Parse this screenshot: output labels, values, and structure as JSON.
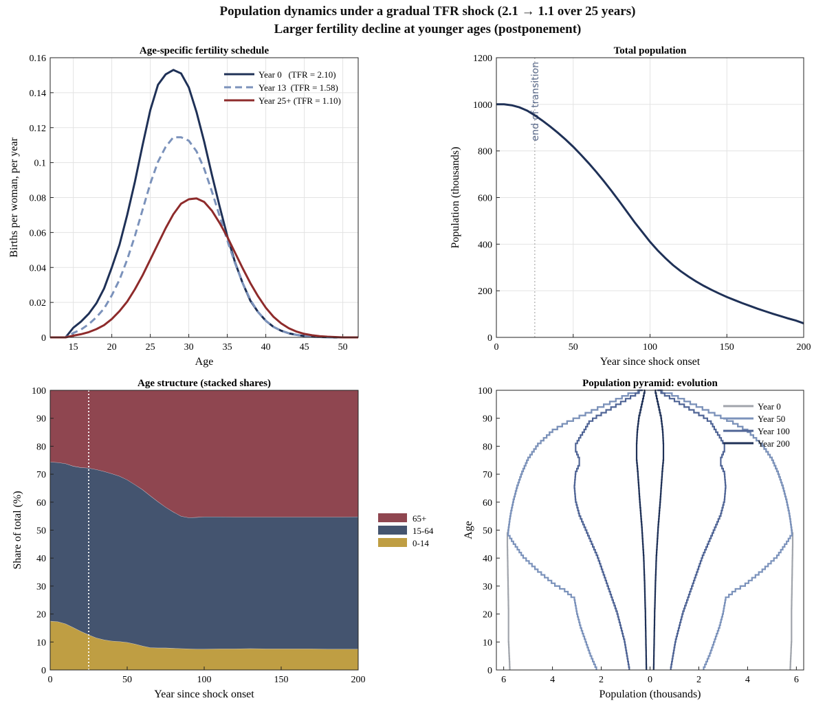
{
  "suptitle": {
    "line1": "Population dynamics under a gradual TFR shock (2.1  →  1.1 over 25 years)",
    "line2": "Larger fertility decline at younger ages (postponement)"
  },
  "colors": {
    "navy": "#1f3157",
    "light_blue": "#7b92bb",
    "dark_red": "#8e2b2b",
    "share_65": "#8f4650",
    "share_1564": "#44546f",
    "share_014": "#bf9e43",
    "gray": "#a0a4ab",
    "mid_blue": "#4f6495"
  },
  "chart_data": [
    {
      "type": "line",
      "title": "Age-specific fertility schedule",
      "xlabel": "Age",
      "ylabel": "Births per woman, per year",
      "xlim": [
        12,
        52
      ],
      "ylim": [
        0,
        0.16
      ],
      "xticks": [
        "15",
        "20",
        "25",
        "30",
        "35",
        "40",
        "45",
        "50"
      ],
      "yticks": [
        "0",
        "0.02",
        "0.04",
        "0.06",
        "0.08",
        "0.1",
        "0.12",
        "0.14",
        "0.16"
      ],
      "grid": true,
      "legend": "top-right",
      "series": [
        {
          "name": "Year 0   (TFR = 2.10)",
          "style": "solid",
          "color": "navy",
          "x": [
            12,
            14,
            15,
            16,
            17,
            18,
            19,
            20,
            21,
            22,
            23,
            24,
            25,
            26,
            27,
            28,
            29,
            30,
            31,
            32,
            33,
            34,
            35,
            36,
            37,
            38,
            39,
            40,
            41,
            42,
            43,
            44,
            45,
            46,
            47,
            48,
            49,
            50,
            52
          ],
          "y": [
            0,
            0,
            0.0055,
            0.009,
            0.0135,
            0.0195,
            0.028,
            0.04,
            0.053,
            0.07,
            0.089,
            0.11,
            0.13,
            0.1445,
            0.1505,
            0.153,
            0.151,
            0.143,
            0.129,
            0.112,
            0.093,
            0.075,
            0.058,
            0.043,
            0.031,
            0.021,
            0.0145,
            0.0095,
            0.006,
            0.0038,
            0.0023,
            0.0014,
            0.0008,
            0.0004,
            0.0002,
            0.0001,
            0,
            0,
            0
          ]
        },
        {
          "name": "Year 13  (TFR = 1.58)",
          "style": "dashed",
          "color": "light_blue",
          "x": [
            12,
            14,
            15,
            16,
            17,
            18,
            19,
            20,
            21,
            22,
            23,
            24,
            25,
            26,
            27,
            28,
            29,
            30,
            31,
            32,
            33,
            34,
            35,
            36,
            37,
            38,
            39,
            40,
            41,
            42,
            43,
            44,
            45,
            46,
            47,
            48,
            49,
            50,
            52
          ],
          "y": [
            0,
            0,
            0.0025,
            0.0045,
            0.0075,
            0.0115,
            0.0165,
            0.024,
            0.033,
            0.0445,
            0.058,
            0.073,
            0.088,
            0.1005,
            0.109,
            0.1145,
            0.1145,
            0.1125,
            0.1065,
            0.0965,
            0.0835,
            0.0695,
            0.0555,
            0.0425,
            0.031,
            0.0215,
            0.0145,
            0.0095,
            0.006,
            0.0038,
            0.0023,
            0.0014,
            0.0008,
            0.0004,
            0.0002,
            0.0001,
            0,
            0,
            0
          ]
        },
        {
          "name": "Year 25+ (TFR = 1.10)",
          "style": "solid",
          "color": "dark_red",
          "x": [
            12,
            14,
            15,
            16,
            17,
            18,
            19,
            20,
            21,
            22,
            23,
            24,
            25,
            26,
            27,
            28,
            29,
            30,
            31,
            32,
            33,
            34,
            35,
            36,
            37,
            38,
            39,
            40,
            41,
            42,
            43,
            44,
            45,
            46,
            47,
            48,
            49,
            50,
            52
          ],
          "y": [
            0,
            0,
            0.001,
            0.0018,
            0.003,
            0.0047,
            0.007,
            0.0105,
            0.015,
            0.0205,
            0.0275,
            0.0355,
            0.0445,
            0.0535,
            0.0625,
            0.0705,
            0.0765,
            0.079,
            0.0795,
            0.0775,
            0.0725,
            0.0655,
            0.0575,
            0.0485,
            0.0395,
            0.031,
            0.0235,
            0.017,
            0.0118,
            0.008,
            0.0052,
            0.0033,
            0.002,
            0.0012,
            0.0007,
            0.0004,
            0.0002,
            0,
            0
          ]
        }
      ]
    },
    {
      "type": "line",
      "title": "Total population",
      "xlabel": "Year since shock onset",
      "ylabel": "Population (thousands)",
      "xlim": [
        0,
        200
      ],
      "ylim": [
        0,
        1200
      ],
      "xticks": [
        "0",
        "50",
        "100",
        "150",
        "200"
      ],
      "yticks": [
        "0",
        "200",
        "400",
        "600",
        "800",
        "1000",
        "1200"
      ],
      "grid": true,
      "annotation": {
        "text": "end of transition",
        "x": 25
      },
      "series": [
        {
          "name": "",
          "color": "navy",
          "x": [
            0,
            5,
            10,
            15,
            20,
            25,
            30,
            35,
            40,
            45,
            50,
            55,
            60,
            65,
            70,
            75,
            80,
            85,
            90,
            95,
            100,
            105,
            110,
            115,
            120,
            125,
            130,
            135,
            140,
            145,
            150,
            155,
            160,
            165,
            170,
            175,
            180,
            185,
            190,
            195,
            200
          ],
          "y": [
            1000,
            1000,
            996,
            987,
            973,
            953,
            930,
            905,
            878,
            849,
            818,
            784,
            748,
            710,
            670,
            628,
            584,
            539,
            494,
            452,
            410,
            373,
            340,
            310,
            284,
            261,
            240,
            221,
            204,
            188,
            173,
            160,
            147,
            135,
            123,
            112,
            101,
            91,
            81,
            72,
            60
          ]
        }
      ]
    },
    {
      "type": "area",
      "title": "Age structure (stacked shares)",
      "xlabel": "Year since shock onset",
      "ylabel": "Share of total (%)",
      "xlim": [
        0,
        200
      ],
      "ylim": [
        0,
        100
      ],
      "xticks": [
        "0",
        "50",
        "100",
        "150",
        "200"
      ],
      "yticks": [
        "0",
        "10",
        "20",
        "30",
        "40",
        "50",
        "60",
        "70",
        "80",
        "90",
        "100"
      ],
      "legend": "right",
      "annotation": {
        "x": 25
      },
      "x": [
        0,
        5,
        10,
        15,
        20,
        25,
        30,
        35,
        40,
        45,
        50,
        55,
        60,
        65,
        70,
        75,
        80,
        85,
        90,
        95,
        100,
        110,
        120,
        130,
        140,
        150,
        160,
        170,
        180,
        190,
        200
      ],
      "series": [
        {
          "name": "0-14",
          "color": "share_014",
          "values": [
            17.5,
            17.3,
            16.5,
            15.2,
            13.8,
            12.6,
            11.5,
            10.8,
            10.4,
            10.2,
            9.9,
            9.3,
            8.6,
            8.0,
            7.9,
            7.9,
            7.8,
            7.7,
            7.6,
            7.5,
            7.5,
            7.6,
            7.6,
            7.7,
            7.6,
            7.6,
            7.6,
            7.6,
            7.5,
            7.5,
            7.5
          ]
        },
        {
          "name": "15-64",
          "color": "share_1564",
          "values": [
            56.9,
            56.9,
            57.3,
            57.7,
            58.6,
            59.6,
            60.2,
            60.2,
            59.8,
            59.1,
            58.1,
            57.0,
            55.9,
            54.3,
            52.3,
            50.3,
            48.7,
            47.3,
            46.9,
            47.1,
            47.3,
            47.2,
            47.1,
            47.0,
            47.1,
            47.1,
            47.1,
            47.1,
            47.2,
            47.2,
            47.3
          ]
        },
        {
          "name": "65+",
          "color": "share_65",
          "values": [
            25.6,
            25.8,
            26.2,
            27.1,
            27.6,
            27.8,
            28.3,
            29.0,
            29.8,
            30.7,
            32.0,
            33.7,
            35.5,
            37.7,
            39.8,
            41.8,
            43.5,
            45.0,
            45.5,
            45.4,
            45.2,
            45.2,
            45.3,
            45.3,
            45.3,
            45.3,
            45.3,
            45.3,
            45.3,
            45.3,
            45.2
          ]
        }
      ]
    },
    {
      "type": "line",
      "title": "Population pyramid: evolution",
      "xlabel": "Population (thousands)",
      "ylabel": "Age",
      "xlim": [
        -6.3,
        6.3
      ],
      "ylim": [
        0,
        100
      ],
      "xticks": [
        "6",
        "4",
        "2",
        "0",
        "2",
        "4",
        "6"
      ],
      "yticks": [
        "0",
        "10",
        "20",
        "30",
        "40",
        "50",
        "60",
        "70",
        "80",
        "90",
        "100"
      ],
      "legend": "top-right",
      "series": [
        {
          "name": "Year 0",
          "color": "gray",
          "age": [
            0,
            10,
            20,
            30,
            40,
            45,
            48,
            50,
            55,
            60,
            65,
            70,
            75,
            80,
            85,
            88,
            90,
            92,
            94,
            96,
            98,
            99,
            100
          ],
          "value": [
            5.75,
            5.8,
            5.8,
            5.82,
            5.84,
            5.85,
            5.85,
            5.8,
            5.72,
            5.6,
            5.45,
            5.25,
            5.0,
            4.6,
            4.0,
            3.4,
            2.9,
            2.4,
            1.9,
            1.4,
            0.9,
            0.5,
            0.3
          ]
        },
        {
          "name": "Year 50",
          "color": "light_blue",
          "age": [
            0,
            5,
            10,
            15,
            20,
            25,
            28,
            30,
            35,
            40,
            45,
            48,
            50,
            55,
            60,
            65,
            70,
            75,
            80,
            85,
            88,
            90,
            92,
            94,
            96,
            98,
            99,
            100
          ],
          "value": [
            2.2,
            2.45,
            2.65,
            2.85,
            3.0,
            3.1,
            3.5,
            3.9,
            4.6,
            5.2,
            5.6,
            5.82,
            5.8,
            5.72,
            5.6,
            5.45,
            5.25,
            5.0,
            4.6,
            4.0,
            3.4,
            2.9,
            2.4,
            1.9,
            1.4,
            0.9,
            0.5,
            0.3
          ]
        },
        {
          "name": "Year 100",
          "color": "mid_blue",
          "age": [
            0,
            5,
            10,
            15,
            20,
            25,
            30,
            35,
            40,
            45,
            50,
            55,
            60,
            65,
            70,
            73,
            75,
            78,
            80,
            83,
            85,
            88,
            90,
            92,
            94,
            96,
            98,
            100
          ],
          "value": [
            0.85,
            0.95,
            1.05,
            1.2,
            1.35,
            1.55,
            1.75,
            1.95,
            2.15,
            2.4,
            2.65,
            2.9,
            3.05,
            3.1,
            3.05,
            2.9,
            2.9,
            3.05,
            3.05,
            2.85,
            2.7,
            2.5,
            2.2,
            1.8,
            1.4,
            1.0,
            0.6,
            0.3
          ]
        },
        {
          "name": "Year 200",
          "color": "navy",
          "age": [
            0,
            10,
            20,
            30,
            40,
            50,
            60,
            70,
            75,
            80,
            85,
            90,
            95,
            100
          ],
          "value": [
            0.15,
            0.17,
            0.19,
            0.22,
            0.26,
            0.33,
            0.42,
            0.5,
            0.55,
            0.55,
            0.52,
            0.45,
            0.32,
            0.2
          ]
        }
      ]
    }
  ]
}
